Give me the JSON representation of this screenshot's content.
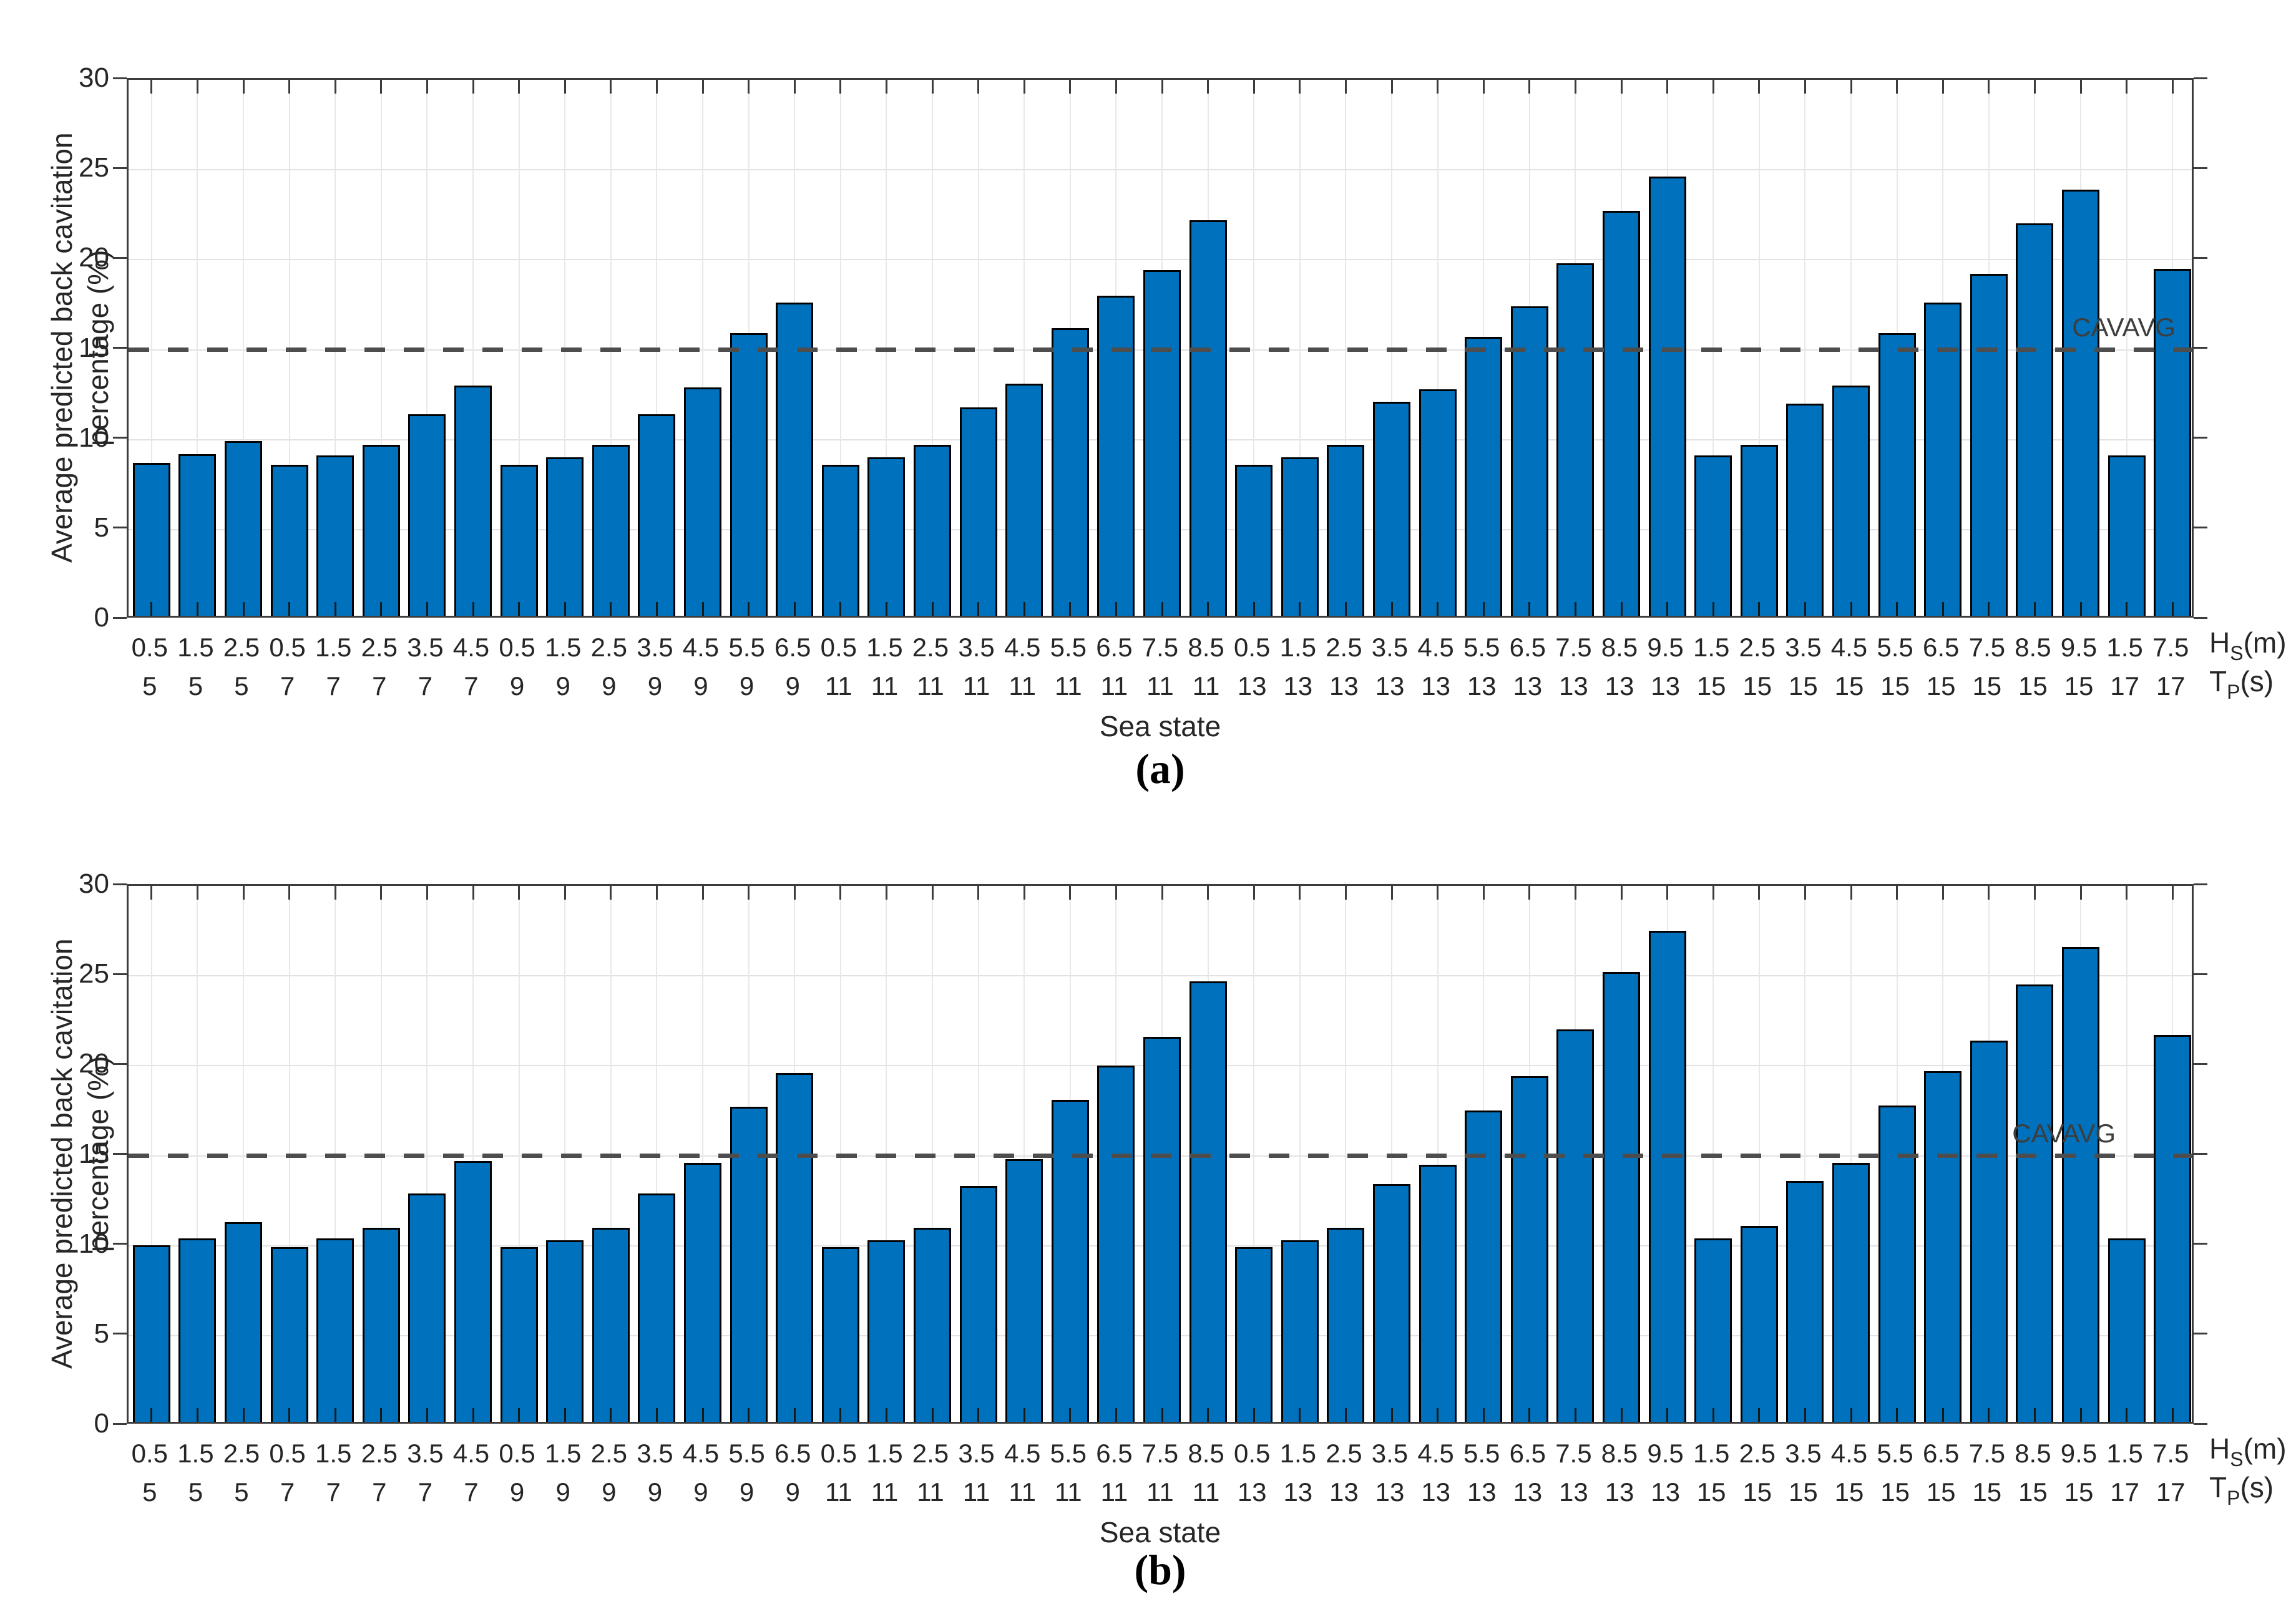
{
  "figure": {
    "background": "#ffffff",
    "colors": {
      "bar_fill": "#0072BD",
      "bar_edge": "#000000",
      "threshold_line": "#4D4D4D",
      "grid": "#E2E2E2",
      "axis": "#3C3C3C",
      "text": "#262626"
    }
  },
  "chart_data": [
    {
      "id": "a",
      "type": "bar",
      "caption": "(a)",
      "ylabel": "Average predicted back cavitation percentage (%)",
      "xlabel": "Sea state",
      "ylim": [
        0,
        30
      ],
      "yticks": [
        0,
        5,
        10,
        15,
        20,
        25,
        30
      ],
      "grid": "on",
      "legend": "none",
      "bar_color": "#0072BD",
      "threshold": {
        "value": 15,
        "label": "CAVAVG",
        "style": "dashed",
        "color": "#4D4D4D"
      },
      "right_labels": {
        "hs_main": "H",
        "hs_sub": "S",
        "hs_unit": "(m)",
        "tp_main": "T",
        "tp_sub": "P",
        "tp_unit": "(s)"
      },
      "categories_hs": [
        "0.5",
        "1.5",
        "2.5",
        "0.5",
        "1.5",
        "2.5",
        "3.5",
        "4.5",
        "0.5",
        "1.5",
        "2.5",
        "3.5",
        "4.5",
        "5.5",
        "6.5",
        "0.5",
        "1.5",
        "2.5",
        "3.5",
        "4.5",
        "5.5",
        "6.5",
        "7.5",
        "8.5",
        "0.5",
        "1.5",
        "2.5",
        "3.5",
        "4.5",
        "5.5",
        "6.5",
        "7.5",
        "8.5",
        "9.5",
        "1.5",
        "2.5",
        "3.5",
        "4.5",
        "5.5",
        "6.5",
        "7.5",
        "8.5",
        "9.5",
        "1.5",
        "7.5"
      ],
      "categories_tp": [
        "5",
        "5",
        "5",
        "7",
        "7",
        "7",
        "7",
        "7",
        "9",
        "9",
        "9",
        "9",
        "9",
        "9",
        "9",
        "11",
        "11",
        "11",
        "11",
        "11",
        "11",
        "11",
        "11",
        "11",
        "13",
        "13",
        "13",
        "13",
        "13",
        "13",
        "13",
        "13",
        "13",
        "13",
        "15",
        "15",
        "15",
        "15",
        "15",
        "15",
        "15",
        "15",
        "15",
        "17",
        "17"
      ],
      "values": [
        8.5,
        9.0,
        9.7,
        8.4,
        8.9,
        9.5,
        11.2,
        12.8,
        8.4,
        8.8,
        9.5,
        11.2,
        12.7,
        15.7,
        17.4,
        8.4,
        8.8,
        9.5,
        11.6,
        12.9,
        16.0,
        17.8,
        19.2,
        22.0,
        8.4,
        8.8,
        9.5,
        11.9,
        12.6,
        15.5,
        17.2,
        19.6,
        22.5,
        24.4,
        8.9,
        9.5,
        11.8,
        12.8,
        15.7,
        17.4,
        19.0,
        21.8,
        23.7,
        8.9,
        19.3
      ]
    },
    {
      "id": "b",
      "type": "bar",
      "caption": "(b)",
      "ylabel": "Average predicted back cavitation percentage (%)",
      "xlabel": "Sea state",
      "ylim": [
        0,
        30
      ],
      "yticks": [
        0,
        5,
        10,
        15,
        20,
        25,
        30
      ],
      "grid": "on",
      "legend": "none",
      "bar_color": "#0072BD",
      "threshold": {
        "value": 15,
        "label": "CAVAVG",
        "style": "dashed",
        "color": "#4D4D4D"
      },
      "right_labels": {
        "hs_main": "H",
        "hs_sub": "S",
        "hs_unit": "(m)",
        "tp_main": "T",
        "tp_sub": "P",
        "tp_unit": "(s)"
      },
      "categories_hs": [
        "0.5",
        "1.5",
        "2.5",
        "0.5",
        "1.5",
        "2.5",
        "3.5",
        "4.5",
        "0.5",
        "1.5",
        "2.5",
        "3.5",
        "4.5",
        "5.5",
        "6.5",
        "0.5",
        "1.5",
        "2.5",
        "3.5",
        "4.5",
        "5.5",
        "6.5",
        "7.5",
        "8.5",
        "0.5",
        "1.5",
        "2.5",
        "3.5",
        "4.5",
        "5.5",
        "6.5",
        "7.5",
        "8.5",
        "9.5",
        "1.5",
        "2.5",
        "3.5",
        "4.5",
        "5.5",
        "6.5",
        "7.5",
        "8.5",
        "9.5",
        "1.5",
        "7.5"
      ],
      "categories_tp": [
        "5",
        "5",
        "5",
        "7",
        "7",
        "7",
        "7",
        "7",
        "9",
        "9",
        "9",
        "9",
        "9",
        "9",
        "9",
        "11",
        "11",
        "11",
        "11",
        "11",
        "11",
        "11",
        "11",
        "11",
        "13",
        "13",
        "13",
        "13",
        "13",
        "13",
        "13",
        "13",
        "13",
        "13",
        "15",
        "15",
        "15",
        "15",
        "15",
        "15",
        "15",
        "15",
        "15",
        "17",
        "17"
      ],
      "values": [
        9.8,
        10.2,
        11.1,
        9.7,
        10.2,
        10.8,
        12.7,
        14.5,
        9.7,
        10.1,
        10.8,
        12.7,
        14.4,
        17.5,
        19.4,
        9.7,
        10.1,
        10.8,
        13.1,
        14.6,
        17.9,
        19.8,
        21.4,
        24.5,
        9.7,
        10.1,
        10.8,
        13.2,
        14.3,
        17.3,
        19.2,
        21.8,
        25.0,
        27.3,
        10.2,
        10.9,
        13.4,
        14.4,
        17.6,
        19.5,
        21.2,
        24.3,
        26.4,
        10.2,
        21.5
      ]
    }
  ]
}
